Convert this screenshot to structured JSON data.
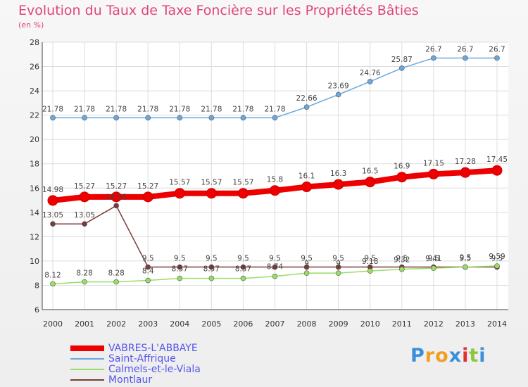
{
  "chart_data": {
    "type": "line",
    "title": "Evolution du Taux de Taxe Foncière sur les Propriétés Bâties",
    "ylabel": "(en %)",
    "xlabel": "",
    "categories": [
      "2000",
      "2001",
      "2002",
      "2003",
      "2004",
      "2005",
      "2006",
      "2007",
      "2008",
      "2009",
      "2010",
      "2011",
      "2012",
      "2013",
      "2014"
    ],
    "ylim": [
      6,
      28
    ],
    "yticks": [
      6,
      8,
      10,
      12,
      14,
      16,
      18,
      20,
      22,
      24,
      26,
      28
    ],
    "grid": true,
    "series": [
      {
        "name": "VABRES-L'ABBAYE",
        "color": "#ee0000",
        "values": [
          14.98,
          15.27,
          15.27,
          15.27,
          15.57,
          15.57,
          15.57,
          15.8,
          16.1,
          16.3,
          16.5,
          16.9,
          17.15,
          17.28,
          17.45
        ],
        "labels": [
          "14.98",
          "15.27",
          "15.27",
          "15.27",
          "15.57",
          "15.57",
          "15.57",
          "15.8",
          "16.1",
          "16.3",
          "16.5",
          "16.9",
          "17.15",
          "17.28",
          "17.45"
        ]
      },
      {
        "name": "Saint-Affrique",
        "color": "#6ba8dc",
        "values": [
          21.78,
          21.78,
          21.78,
          21.78,
          21.78,
          21.78,
          21.78,
          21.78,
          22.66,
          23.69,
          24.76,
          25.87,
          26.7,
          26.7,
          26.7
        ],
        "labels": [
          "21.78",
          "21.78",
          "21.78",
          "21.78",
          "21.78",
          "21.78",
          "21.78",
          "21.78",
          "22.66",
          "23.69",
          "24.76",
          "25.87",
          "26.7",
          "26.7",
          "26.7"
        ]
      },
      {
        "name": "Calmels-et-le-Viala",
        "color": "#99dd66",
        "values": [
          8.12,
          8.28,
          8.28,
          8.4,
          8.57,
          8.57,
          8.57,
          8.74,
          9.0,
          9.0,
          9.18,
          9.32,
          9.41,
          9.5,
          9.59
        ],
        "labels": [
          "8.12",
          "8.28",
          "8.28",
          "8.4",
          "8.57",
          "8.57",
          "8.57",
          "8.74",
          "9",
          "9",
          "9.18",
          "9.32",
          "9.41",
          "9.5",
          "9.59"
        ]
      },
      {
        "name": "Montlaur",
        "color": "#7a3a3a",
        "values": [
          13.05,
          13.05,
          14.55,
          9.5,
          9.5,
          9.5,
          9.5,
          9.5,
          9.5,
          9.5,
          9.5,
          9.5,
          9.5,
          9.5,
          9.5
        ],
        "labels": [
          "13.05",
          "13.05",
          "14.55",
          "9.5",
          "9.5",
          "9.5",
          "9.5",
          "9.5",
          "9.5",
          "9.5",
          "9.5",
          "9.5",
          "9.5",
          "9.5",
          "9.5"
        ]
      }
    ]
  },
  "legend": {
    "items": [
      {
        "label": "VABRES-L'ABBAYE",
        "color": "#ee0000"
      },
      {
        "label": "Saint-Affrique",
        "color": "#6ba8dc"
      },
      {
        "label": "Calmels-et-le-Viala",
        "color": "#99dd66"
      },
      {
        "label": "Montlaur",
        "color": "#7a3a3a"
      }
    ]
  },
  "logo": {
    "letters": [
      "P",
      "r",
      "o",
      "x",
      "i",
      "t",
      "i"
    ],
    "colors": [
      "#3b8fd8",
      "#f0a020",
      "#f0a020",
      "#3b8fd8",
      "#e03030",
      "#8cc63f",
      "#3b8fd8"
    ]
  }
}
